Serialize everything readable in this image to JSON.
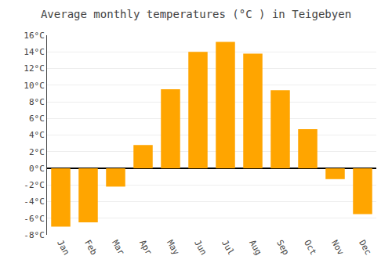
{
  "chart_data": {
    "type": "bar",
    "title": "Average monthly temperatures (°C ) in Teigebyen",
    "categories": [
      "Jan",
      "Feb",
      "Mar",
      "Apr",
      "May",
      "Jun",
      "Jul",
      "Aug",
      "Sep",
      "Oct",
      "Nov",
      "Dec"
    ],
    "values": [
      -7.0,
      -6.5,
      -2.2,
      2.8,
      9.5,
      14.0,
      15.2,
      13.8,
      9.4,
      4.7,
      -1.3,
      -5.5
    ],
    "color": "#FFA500",
    "ylim": [
      -8,
      16
    ],
    "yticks": [
      {
        "value": -8,
        "label": "-8°C"
      },
      {
        "value": -6,
        "label": "-6°C"
      },
      {
        "value": -4,
        "label": "-4°C"
      },
      {
        "value": -2,
        "label": "-2°C"
      },
      {
        "value": 0,
        "label": "0°C"
      },
      {
        "value": 2,
        "label": "2°C"
      },
      {
        "value": 4,
        "label": "4°C"
      },
      {
        "value": 6,
        "label": "6°C"
      },
      {
        "value": 8,
        "label": "8°C"
      },
      {
        "value": 10,
        "label": "10°C"
      },
      {
        "value": 12,
        "label": "12°C"
      },
      {
        "value": 14,
        "label": "14°C"
      },
      {
        "value": 16,
        "label": "16°C"
      }
    ],
    "grid": true
  }
}
